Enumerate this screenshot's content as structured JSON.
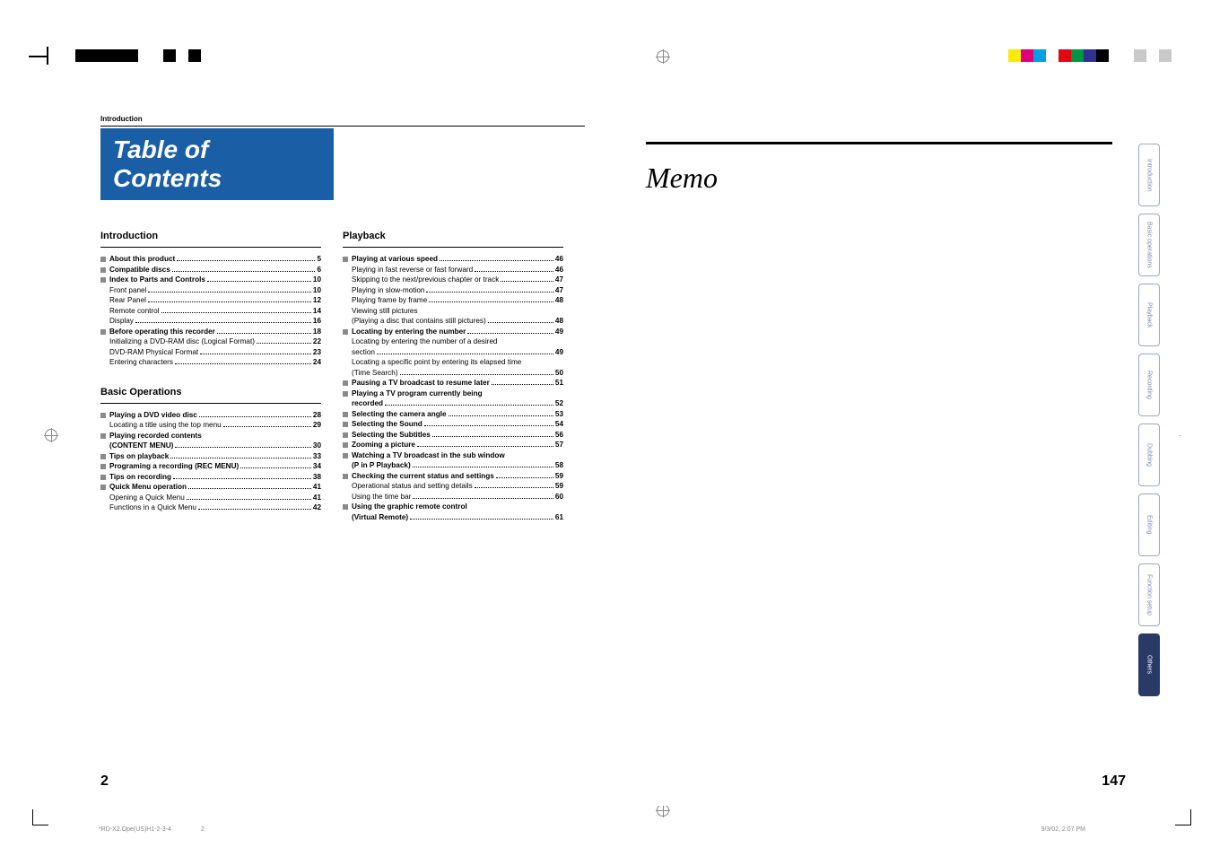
{
  "colors": {
    "title_bar_bg": "#1a5fa6",
    "bullet": "#8a8a8a",
    "tab_border": "#9aa7c7",
    "tab_text": "#7a8ab5",
    "tab_active_bg": "#2a3a66"
  },
  "print_bars": {
    "top_left": [
      "#000000",
      "#000000",
      "#000000",
      "#000000",
      "#000000",
      "#ffffff",
      "#ffffff",
      "#000000",
      "#ffffff",
      "#000000",
      "#ffffff"
    ],
    "top_right": [
      "#fcea0d",
      "#e2007a",
      "#00a0e3",
      "#ffffff",
      "#e30613",
      "#009640",
      "#2e3192",
      "#000000",
      "#ffffff",
      "#ffffff",
      "#c9c9c9",
      "#ffffff",
      "#c9c9c9"
    ]
  },
  "left_page": {
    "section_label": "Introduction",
    "title": "Table of Contents",
    "page_number": "2",
    "columns": [
      {
        "heading": "Introduction",
        "items": [
          {
            "type": "main",
            "label": "About this product",
            "page": "5"
          },
          {
            "type": "main",
            "label": "Compatible discs",
            "page": "6"
          },
          {
            "type": "main",
            "label": "Index to Parts and Controls",
            "page": "10"
          },
          {
            "type": "sub",
            "label": "Front panel",
            "page": "10"
          },
          {
            "type": "sub",
            "label": "Rear Panel",
            "page": "12"
          },
          {
            "type": "sub",
            "label": "Remote control",
            "page": "14"
          },
          {
            "type": "sub",
            "label": "Display",
            "page": "16"
          },
          {
            "type": "main",
            "label": "Before operating this recorder",
            "page": "18"
          },
          {
            "type": "sub",
            "label": "Initializing a DVD-RAM disc (Logical Format)",
            "page": "22"
          },
          {
            "type": "sub",
            "label": "DVD-RAM Physical Format",
            "page": "23"
          },
          {
            "type": "sub",
            "label": "Entering characters",
            "page": "24"
          }
        ],
        "heading2": "Basic Operations",
        "items2": [
          {
            "type": "main",
            "label": "Playing a DVD video disc",
            "page": "28"
          },
          {
            "type": "sub",
            "label": "Locating a title using the top menu",
            "page": "29"
          },
          {
            "type": "main",
            "label": "Playing recorded contents",
            "page": ""
          },
          {
            "type": "cont",
            "label": "(CONTENT MENU)",
            "page": "30"
          },
          {
            "type": "main",
            "label": "Tips on playback",
            "page": "33"
          },
          {
            "type": "main",
            "label": "Programing a recording (REC MENU)",
            "page": "34"
          },
          {
            "type": "main",
            "label": "Tips on recording",
            "page": "38"
          },
          {
            "type": "main",
            "label": "Quick Menu operation",
            "page": "41"
          },
          {
            "type": "sub",
            "label": "Opening a Quick Menu",
            "page": "41"
          },
          {
            "type": "sub",
            "label": "Functions in a Quick Menu",
            "page": "42"
          }
        ]
      },
      {
        "heading": "Playback",
        "items": [
          {
            "type": "main",
            "label": "Playing at various speed",
            "page": "46"
          },
          {
            "type": "sub",
            "label": "Playing in fast reverse or fast forward",
            "page": "46"
          },
          {
            "type": "sub",
            "label": "Skipping to the next/previous chapter or track",
            "page": "47"
          },
          {
            "type": "sub",
            "label": "Playing in slow-motion",
            "page": "47"
          },
          {
            "type": "sub",
            "label": "Playing frame by frame",
            "page": "48"
          },
          {
            "type": "sub",
            "label": "Viewing still pictures",
            "page": ""
          },
          {
            "type": "subc",
            "label": "(Playing a disc that contains still pictures)",
            "page": "48"
          },
          {
            "type": "main",
            "label": "Locating by entering the number",
            "page": "49"
          },
          {
            "type": "sub",
            "label": "Locating by entering the number of a desired",
            "page": ""
          },
          {
            "type": "subc",
            "label": "section",
            "page": "49"
          },
          {
            "type": "sub",
            "label": "Locating a specific point by entering its elapsed time",
            "page": ""
          },
          {
            "type": "subc",
            "label": "(Time Search)",
            "page": "50"
          },
          {
            "type": "main",
            "label": "Pausing a TV broadcast to resume later",
            "page": "51"
          },
          {
            "type": "main",
            "label": "Playing a TV program currently being",
            "page": ""
          },
          {
            "type": "cont",
            "label": "recorded",
            "page": "52"
          },
          {
            "type": "main",
            "label": "Selecting the camera angle",
            "page": "53"
          },
          {
            "type": "main",
            "label": "Selecting the Sound",
            "page": "54"
          },
          {
            "type": "main",
            "label": "Selecting the Subtitles",
            "page": "56"
          },
          {
            "type": "main",
            "label": "Zooming a picture",
            "page": "57"
          },
          {
            "type": "main",
            "label": "Watching a TV broadcast in the sub window",
            "page": ""
          },
          {
            "type": "cont",
            "label": "(P in P Playback)",
            "page": "58"
          },
          {
            "type": "main",
            "label": "Checking the current status and settings",
            "page": "59"
          },
          {
            "type": "sub",
            "label": "Operational status and setting details",
            "page": "59"
          },
          {
            "type": "sub",
            "label": "Using the time bar",
            "page": "60"
          },
          {
            "type": "main",
            "label": "Using the graphic remote control",
            "page": ""
          },
          {
            "type": "cont",
            "label": "(Virtual Remote)",
            "page": "61"
          }
        ]
      }
    ],
    "footer": {
      "file": "*RD-X2.Ope(US)H1-2-3-4",
      "num": "2"
    }
  },
  "right_page": {
    "title": "Memo",
    "page_number": "147",
    "tabs": [
      "Introduction",
      "Basic operations",
      "Playback",
      "Recording",
      "Dubbing",
      "Editing",
      "Function setup",
      "Others"
    ],
    "active_tab_index": 7,
    "footer_date": "9/3/02, 2:07 PM"
  }
}
